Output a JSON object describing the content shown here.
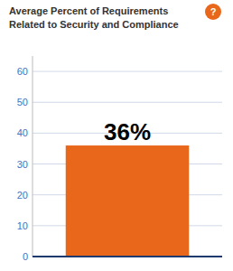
{
  "chart_data": {
    "type": "bar",
    "title": "Average Percent of Requirements\nRelated to Security and Compliance",
    "categories": [
      null
    ],
    "values": [
      36
    ],
    "value_labels": [
      "36%"
    ],
    "data_labels": true,
    "color": "#E8671A",
    "ylim": [
      0,
      65
    ],
    "yticks": [
      0,
      10,
      20,
      30,
      40,
      50,
      60
    ],
    "grid": true,
    "tick_labels": "y",
    "annotations": [
      "?"
    ]
  }
}
